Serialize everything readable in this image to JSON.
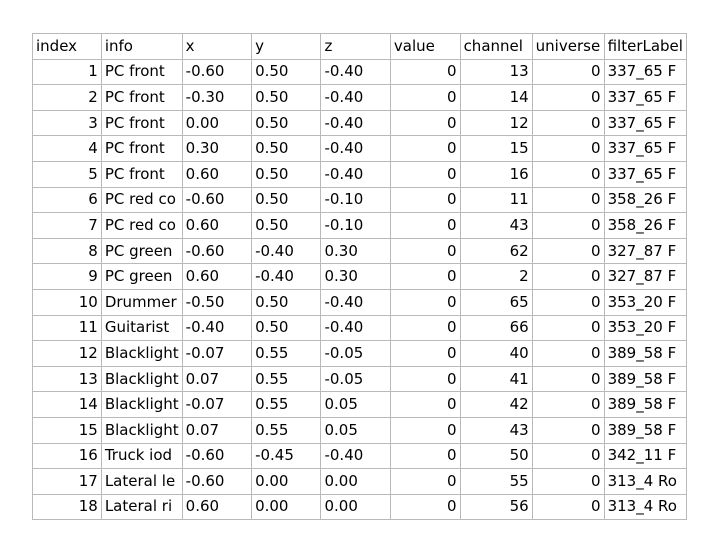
{
  "sheet": {
    "headers": [
      "index",
      "info",
      "x",
      "y",
      "z",
      "value",
      "channel",
      "universe",
      "filterLabel"
    ],
    "rows": [
      [
        "1",
        "PC front",
        "-0.60",
        "0.50",
        "-0.40",
        "0",
        "13",
        "0",
        "337_65 F"
      ],
      [
        "2",
        "PC front",
        "-0.30",
        "0.50",
        "-0.40",
        "0",
        "14",
        "0",
        "337_65 F"
      ],
      [
        "3",
        "PC front",
        "0.00",
        "0.50",
        "-0.40",
        "0",
        "12",
        "0",
        "337_65 F"
      ],
      [
        "4",
        "PC front",
        "0.30",
        "0.50",
        "-0.40",
        "0",
        "15",
        "0",
        "337_65 F"
      ],
      [
        "5",
        "PC front",
        "0.60",
        "0.50",
        "-0.40",
        "0",
        "16",
        "0",
        "337_65 F"
      ],
      [
        "6",
        "PC red co",
        "-0.60",
        "0.50",
        "-0.10",
        "0",
        "11",
        "0",
        "358_26 F"
      ],
      [
        "7",
        "PC red co",
        "0.60",
        "0.50",
        "-0.10",
        "0",
        "43",
        "0",
        "358_26 F"
      ],
      [
        "8",
        "PC green",
        "-0.60",
        "-0.40",
        "0.30",
        "0",
        "62",
        "0",
        "327_87 F"
      ],
      [
        "9",
        "PC green",
        "0.60",
        "-0.40",
        "0.30",
        "0",
        "2",
        "0",
        "327_87 F"
      ],
      [
        "10",
        "Drummer",
        "-0.50",
        "0.50",
        "-0.40",
        "0",
        "65",
        "0",
        "353_20 F"
      ],
      [
        "11",
        "Guitarist",
        "-0.40",
        "0.50",
        "-0.40",
        "0",
        "66",
        "0",
        "353_20 F"
      ],
      [
        "12",
        "Blacklight",
        "-0.07",
        "0.55",
        "-0.05",
        "0",
        "40",
        "0",
        "389_58 F"
      ],
      [
        "13",
        "Blacklight",
        "0.07",
        "0.55",
        "-0.05",
        "0",
        "41",
        "0",
        "389_58 F"
      ],
      [
        "14",
        "Blacklight",
        "-0.07",
        "0.55",
        "0.05",
        "0",
        "42",
        "0",
        "389_58 F"
      ],
      [
        "15",
        "Blacklight",
        "0.07",
        "0.55",
        "0.05",
        "0",
        "43",
        "0",
        "389_58 F"
      ],
      [
        "16",
        "Truck iod",
        "-0.60",
        "-0.45",
        "-0.40",
        "0",
        "50",
        "0",
        "342_11 F"
      ],
      [
        "17",
        "Lateral le",
        "-0.60",
        "0.00",
        "0.00",
        "0",
        "55",
        "0",
        "313_4 Ro"
      ],
      [
        "18",
        "Lateral ri",
        "0.60",
        "0.00",
        "0.00",
        "0",
        "56",
        "0",
        "313_4 Ro"
      ]
    ]
  }
}
